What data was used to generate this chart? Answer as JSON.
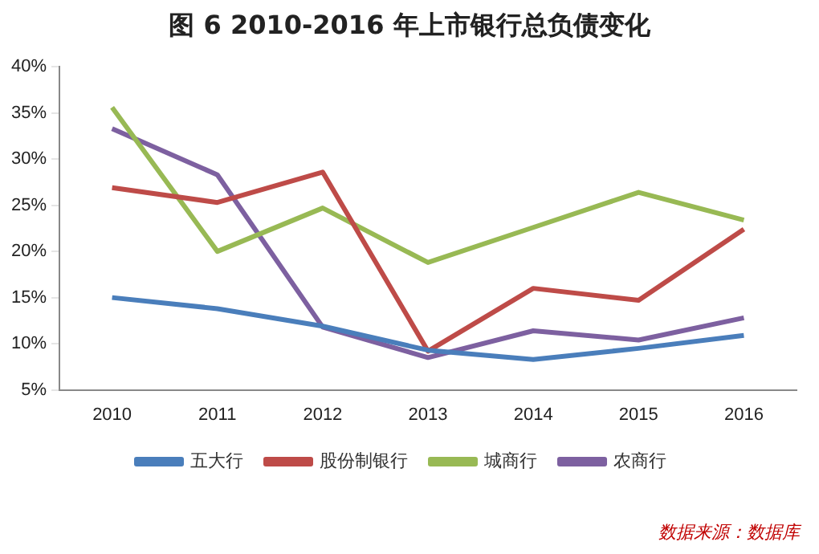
{
  "chart_data": {
    "type": "line",
    "title": "图 6 2010-2016 年上市银行总负债变化",
    "categories": [
      "2010",
      "2011",
      "2012",
      "2013",
      "2014",
      "2015",
      "2016"
    ],
    "series": [
      {
        "name": "五大行",
        "color": "#4a7ebb",
        "values": [
          15.0,
          13.8,
          11.9,
          9.3,
          8.3,
          9.5,
          10.9
        ]
      },
      {
        "name": "股份制银行",
        "color": "#be4b48",
        "values": [
          26.9,
          25.3,
          28.6,
          9.2,
          16.0,
          14.7,
          22.4
        ]
      },
      {
        "name": "城商行",
        "color": "#98b954",
        "values": [
          35.6,
          20.0,
          24.7,
          18.8,
          22.6,
          26.4,
          23.4
        ]
      },
      {
        "name": "农商行",
        "color": "#7d60a0",
        "values": [
          33.3,
          28.3,
          11.8,
          8.5,
          11.4,
          10.4,
          12.8
        ]
      }
    ],
    "ylim": [
      5,
      40
    ],
    "yticks": [
      {
        "value": 5,
        "label": "5%"
      },
      {
        "value": 10,
        "label": "10%"
      },
      {
        "value": 15,
        "label": "15%"
      },
      {
        "value": 20,
        "label": "20%"
      },
      {
        "value": 25,
        "label": "25%"
      },
      {
        "value": 30,
        "label": "30%"
      },
      {
        "value": 35,
        "label": "35%"
      },
      {
        "value": 40,
        "label": "40%"
      }
    ],
    "grid": false,
    "legend": "bottom",
    "marker": "none",
    "line_style": "solid",
    "annotations": [
      "数据来源：数据库"
    ]
  }
}
